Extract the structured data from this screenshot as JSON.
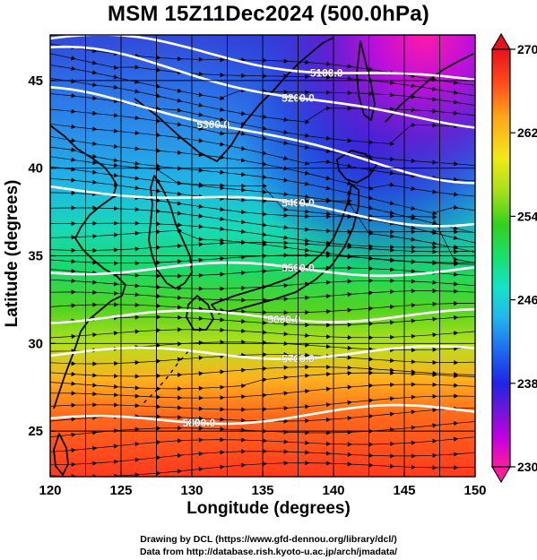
{
  "title": "MSM 15Z11Dec2024 (500.0hPa)",
  "x_axis": {
    "label": "Longitude (degrees)",
    "ticks": [
      "120",
      "125",
      "130",
      "135",
      "140",
      "145",
      "150"
    ],
    "range": [
      120,
      150
    ]
  },
  "y_axis": {
    "label": "Latitude  (degrees)",
    "ticks": [
      "25",
      "30",
      "35",
      "40",
      "45"
    ],
    "range": [
      22.4,
      47.6
    ]
  },
  "colorbar": {
    "labels": [
      "270",
      "262",
      "254",
      "246",
      "238",
      "230"
    ],
    "range": [
      230,
      270
    ],
    "unit_hint": "temperature (K)",
    "colors": [
      "#ff1aa0",
      "#c200e0",
      "#6a18d8",
      "#1f24e6",
      "#1e6cf0",
      "#22b8ea",
      "#14e3c8",
      "#18e070",
      "#33d11e",
      "#a6e11a",
      "#f2e81a",
      "#ffa419",
      "#ff4a1a",
      "#e8121c"
    ]
  },
  "contours": {
    "labels": [
      "5100.0",
      "5200.0",
      "5300.0",
      "5400.0",
      "5500.0",
      "5600.0",
      "5700.0",
      "5800.0"
    ],
    "color": "#ffffff"
  },
  "credits": {
    "line1": "Drawing by DCL (https://www.gfd-dennou.org/library/dcl/)",
    "line2": "Data from http://database.rish.kyoto-u.ac.jp/arch/jmadata/"
  },
  "chart_data": {
    "type": "heatmap",
    "title": "MSM 15Z11Dec2024 (500.0hPa)",
    "xlabel": "Longitude (degrees)",
    "ylabel": "Latitude  (degrees)",
    "xlim": [
      120,
      150
    ],
    "ylim": [
      22.4,
      47.6
    ],
    "color_field": {
      "range": [
        230,
        270
      ],
      "colorbar_ticks": [
        230,
        238,
        246,
        254,
        262,
        270
      ]
    },
    "contour_series": [
      {
        "label": "5100.0",
        "lat_west": 47.4,
        "lat_east": 44.9
      },
      {
        "label": "5200.0",
        "lat_west": 46.6,
        "lat_east": 42.5
      },
      {
        "label": "5300.0",
        "lat_west": 44.3,
        "lat_east": 39.5
      },
      {
        "label": "5400.0",
        "lat_west": 38.9,
        "lat_east": 37.0
      },
      {
        "label": "5500.0",
        "lat_west": 34.3,
        "lat_east": 34.2
      },
      {
        "label": "5600.0",
        "lat_west": 31.5,
        "lat_east": 31.6
      },
      {
        "label": "5700.0",
        "lat_west": 29.4,
        "lat_east": 29.5
      },
      {
        "label": "5800.0",
        "lat_west": 25.5,
        "lat_east": 26.2
      }
    ],
    "wind_vectors": "westerly streamlines with arrowheads",
    "grid": true
  }
}
